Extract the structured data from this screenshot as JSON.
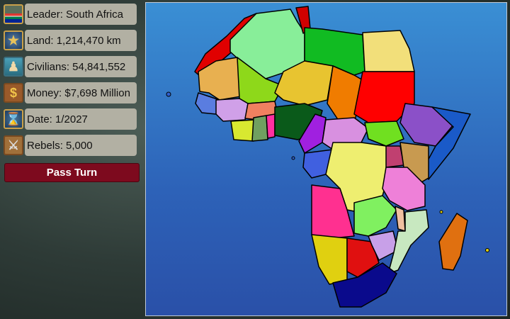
{
  "stats": [
    {
      "icon": "leader-flag-icon",
      "label": "Leader: South Africa"
    },
    {
      "icon": "globe-star-icon",
      "label": "Land: 1,214,470 km"
    },
    {
      "icon": "civilians-icon",
      "label": "Civilians: 54,841,552"
    },
    {
      "icon": "dollar-icon",
      "label": "Money: $7,698 Million"
    },
    {
      "icon": "hourglass-icon",
      "label": "Date: 1/2027"
    },
    {
      "icon": "crossed-swords-icon",
      "label": "Rebels: 5,000"
    }
  ],
  "pass_turn": "Pass Turn",
  "colors": {
    "button": "#7d0a1e",
    "ocean": "#2d62b8",
    "player": "#0a0a8c"
  }
}
